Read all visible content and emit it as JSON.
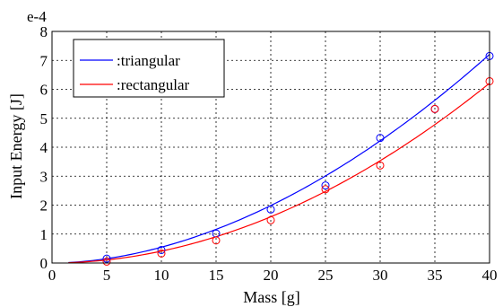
{
  "chart_data": {
    "type": "scatter",
    "xlabel": "Mass [g]",
    "ylabel": "Input Energy [J]",
    "y_exponent_label": "e-4",
    "xlim": [
      0,
      40
    ],
    "ylim": [
      0,
      8
    ],
    "xticks": [
      "0",
      "5",
      "10",
      "15",
      "20",
      "25",
      "30",
      "35",
      "40"
    ],
    "yticks": [
      "0",
      "1",
      "2",
      "3",
      "4",
      "5",
      "6",
      "7",
      "8"
    ],
    "grid": true,
    "legend_position": "top-left",
    "series": [
      {
        "name": ":triangular",
        "color": "#0000ff",
        "points": [
          [
            5,
            0.15
          ],
          [
            10,
            0.45
          ],
          [
            15,
            1.02
          ],
          [
            20,
            1.85
          ],
          [
            25,
            2.68
          ],
          [
            30,
            4.32
          ],
          [
            35,
            5.32
          ],
          [
            40,
            7.15
          ]
        ],
        "fit": {
          "type": "power",
          "a": 0.00755,
          "b": 1.86
        }
      },
      {
        "name": ":rectangular",
        "color": "#ff0000",
        "points": [
          [
            5,
            0.05
          ],
          [
            10,
            0.33
          ],
          [
            15,
            0.78
          ],
          [
            20,
            1.48
          ],
          [
            25,
            2.55
          ],
          [
            30,
            3.37
          ],
          [
            35,
            5.32
          ],
          [
            40,
            6.28
          ]
        ],
        "fit": {
          "type": "power",
          "a": 0.0045,
          "b": 1.96
        }
      }
    ]
  }
}
